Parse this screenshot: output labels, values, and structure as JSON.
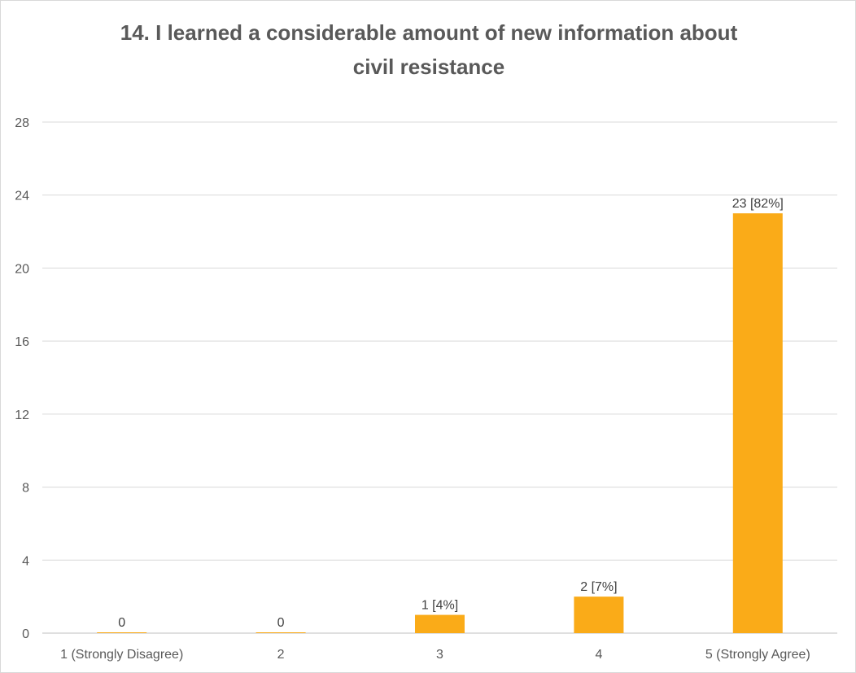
{
  "chart_data": {
    "type": "bar",
    "title": "14. I learned a considerable amount of new information about civil resistance",
    "xlabel": "",
    "ylabel": "",
    "categories": [
      "1 (Strongly Disagree)",
      "2",
      "3",
      "4",
      "5 (Strongly Agree)"
    ],
    "values": [
      0,
      0,
      1,
      2,
      23
    ],
    "data_labels": [
      "0",
      "0",
      "1 [4%]",
      "2 [7%]",
      "23 [82%]"
    ],
    "ylim": [
      0,
      28
    ],
    "yticks": [
      0,
      4,
      8,
      12,
      16,
      20,
      24,
      28
    ],
    "grid": true,
    "legend": "none",
    "colors": {
      "bar": "#faab18",
      "grid": "#d9d9d9",
      "axis": "#bfbfbf"
    }
  }
}
